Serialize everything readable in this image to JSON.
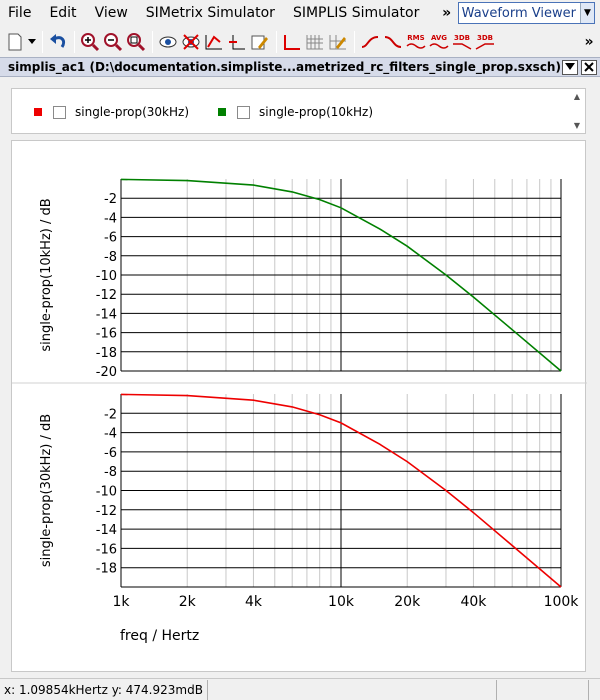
{
  "menu": {
    "items": [
      "File",
      "Edit",
      "View",
      "SIMetrix Simulator",
      "SIMPLIS Simulator"
    ],
    "overflow": "»",
    "viewer_select": "Waveform Viewer"
  },
  "toolbar": {
    "overflow": "»",
    "labels": {
      "rms": "RMS",
      "avg": "AVG",
      "db3a": "3DB",
      "db3b": "3DB"
    }
  },
  "window": {
    "title": "simplis_ac1 (D:\\documentation.simpliste...ametrized_rc_filters_single_prop.sxsch)"
  },
  "legend": {
    "entries": [
      {
        "label": "single-prop(30kHz)",
        "color": "#ee0000"
      },
      {
        "label": "single-prop(10kHz)",
        "color": "#008000"
      }
    ]
  },
  "chart_data": [
    {
      "type": "line",
      "ylabel": "single-prop(10kHz) / dB",
      "xlabel": "",
      "x_scale": "log",
      "xlim": [
        1000,
        100000
      ],
      "ylim": [
        -20,
        0
      ],
      "y_ticks": [
        -2,
        -4,
        -6,
        -8,
        -10,
        -12,
        -14,
        -16,
        -18,
        -20
      ],
      "grid": true,
      "series": [
        {
          "name": "single-prop(10kHz)",
          "color": "#008000",
          "x": [
            1000,
            2000,
            4000,
            6000,
            8000,
            10000,
            15000,
            20000,
            30000,
            40000,
            60000,
            100000
          ],
          "y": [
            -0.04,
            -0.17,
            -0.64,
            -1.34,
            -2.15,
            -3.0,
            -5.2,
            -7.0,
            -10.0,
            -12.3,
            -15.7,
            -20.0
          ]
        }
      ]
    },
    {
      "type": "line",
      "ylabel": "single-prop(30kHz) / dB",
      "xlabel": "freq / Hertz",
      "x_scale": "log",
      "xlim": [
        1000,
        100000
      ],
      "ylim": [
        -20,
        0
      ],
      "y_ticks": [
        -2,
        -4,
        -6,
        -8,
        -10,
        -12,
        -14,
        -16,
        -18
      ],
      "x_ticks": [
        {
          "value": 1000,
          "label": "1k"
        },
        {
          "value": 2000,
          "label": "2k"
        },
        {
          "value": 4000,
          "label": "4k"
        },
        {
          "value": 10000,
          "label": "10k"
        },
        {
          "value": 20000,
          "label": "20k"
        },
        {
          "value": 40000,
          "label": "40k"
        },
        {
          "value": 100000,
          "label": "100k"
        }
      ],
      "grid": true,
      "series": [
        {
          "name": "single-prop(30kHz)",
          "color": "#ee0000",
          "x": [
            1000,
            2000,
            4000,
            6000,
            8000,
            10000,
            15000,
            20000,
            30000,
            40000,
            60000,
            100000
          ],
          "y": [
            -0.04,
            -0.17,
            -0.64,
            -1.34,
            -2.15,
            -3.0,
            -5.2,
            -7.0,
            -10.0,
            -12.3,
            -15.7,
            -20.0
          ]
        }
      ]
    }
  ],
  "status": {
    "cursor": "x: 1.09854kHertz  y: 474.923mdB"
  }
}
